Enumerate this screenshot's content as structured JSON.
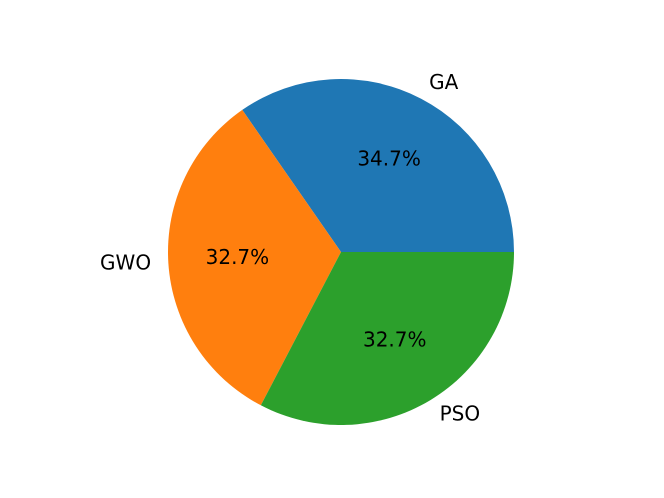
{
  "chart_data": {
    "type": "pie",
    "categories": [
      "GA",
      "GWO",
      "PSO"
    ],
    "values": [
      34.7,
      32.7,
      32.7
    ],
    "value_labels": [
      "34.7%",
      "32.7%",
      "32.7%"
    ],
    "colors": [
      "#1f77b4",
      "#ff7f0e",
      "#2ca02c"
    ]
  }
}
